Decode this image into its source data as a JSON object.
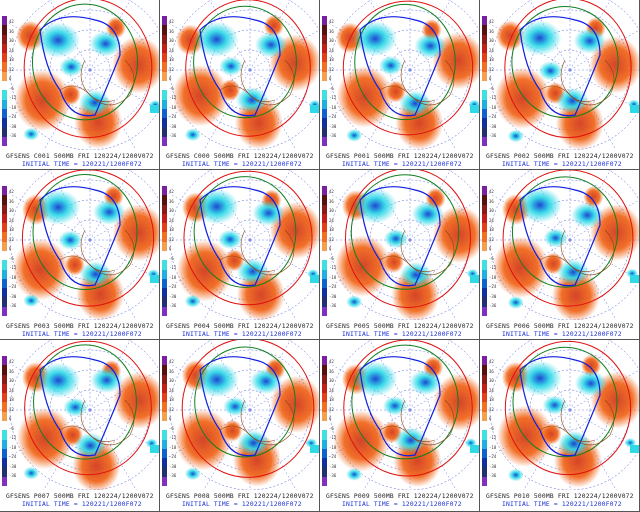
{
  "panels": [
    {
      "member": "GFSENS C001 500MB FRI 120224/1200V072",
      "init": "INITIAL TIME = 120221/1200F072"
    },
    {
      "member": "GFSENS C000 500MB FRI 120224/1200V072",
      "init": "INITIAL TIME = 120221/1200F072"
    },
    {
      "member": "GFSENS P001 500MB FRI 120224/1200V072",
      "init": "INITIAL TIME = 120221/1200F072"
    },
    {
      "member": "GFSENS P002 500MB FRI 120224/1200V072",
      "init": "INITIAL TIME = 120221/1200F072"
    },
    {
      "member": "GFSENS P003 500MB FRI 120224/1200V072",
      "init": "INITIAL TIME = 120221/1200F072"
    },
    {
      "member": "GFSENS P004 500MB FRI 120224/1200V072",
      "init": "INITIAL TIME = 120221/1200F072"
    },
    {
      "member": "GFSENS P005 500MB FRI 120224/1200V072",
      "init": "INITIAL TIME = 120221/1200F072"
    },
    {
      "member": "GFSENS P006 500MB FRI 120224/1200V072",
      "init": "INITIAL TIME = 120221/1200F072"
    },
    {
      "member": "GFSENS P007 500MB FRI 120224/1200V072",
      "init": "INITIAL TIME = 120221/1200F072"
    },
    {
      "member": "GFSENS P008 500MB FRI 120224/1200V072",
      "init": "INITIAL TIME = 120221/1200F072"
    },
    {
      "member": "GFSENS P009 500MB FRI 120224/1200V072",
      "init": "INITIAL TIME = 120221/1200F072"
    },
    {
      "member": "GFSENS P010 500MB FRI 120224/1200V072",
      "init": "INITIAL TIME = 120221/1200F072"
    }
  ],
  "colorbar": {
    "labels": [
      "42",
      "36",
      "30",
      "24",
      "18",
      "12",
      "6",
      "-6",
      "-12",
      "-18",
      "-24",
      "-30",
      "-36"
    ],
    "colors": [
      "#7a1fa0",
      "#5a0f0f",
      "#8b1a1a",
      "#c0201a",
      "#e0401a",
      "#f07020",
      "#f5a050",
      "#ffffff",
      "#40e0e0",
      "#20b0e0",
      "#1060d0",
      "#1030a0",
      "#203070",
      "#8030c0"
    ]
  },
  "map_colors": {
    "warm": "#f06010",
    "cool": "#30d8e8",
    "deep": "#1040d0",
    "contour_red": "#e01010",
    "contour_blue": "#1020e0",
    "contour_green": "#108020",
    "coast": "#8b4513"
  }
}
